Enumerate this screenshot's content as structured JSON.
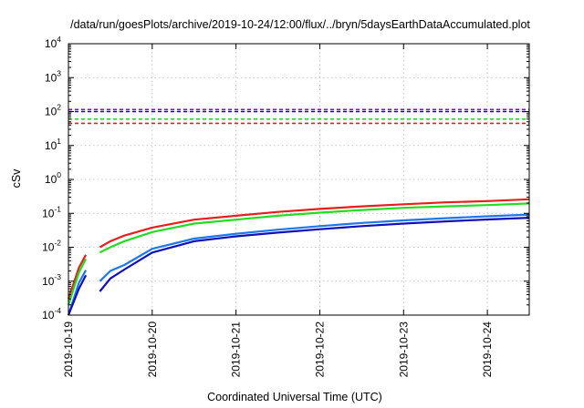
{
  "chart_data": {
    "type": "line",
    "title": "/data/run/goesPlots/archive/2019-10-24/12:00/flux/../bryn/5daysEarthDataAccumulated.plot",
    "xlabel": "Coordinated Universal Time (UTC)",
    "ylabel": "cSv",
    "x_type": "datetime",
    "xlim": [
      "2019-10-19T00:00",
      "2019-10-24T12:00"
    ],
    "x_ticks": [
      "2019-10-19",
      "2019-10-20",
      "2019-10-21",
      "2019-10-22",
      "2019-10-23",
      "2019-10-24"
    ],
    "y_scale": "log",
    "ylim": [
      0.0001,
      10000
    ],
    "y_ticks": [
      {
        "value": 0.0001,
        "base": "10",
        "exp": "-4"
      },
      {
        "value": 0.001,
        "base": "10",
        "exp": "-3"
      },
      {
        "value": 0.01,
        "base": "10",
        "exp": "-2"
      },
      {
        "value": 0.1,
        "base": "10",
        "exp": "-1"
      },
      {
        "value": 1,
        "base": "10",
        "exp": "0"
      },
      {
        "value": 10,
        "base": "10",
        "exp": "1"
      },
      {
        "value": 100,
        "base": "10",
        "exp": "2"
      },
      {
        "value": 1000,
        "base": "10",
        "exp": "3"
      },
      {
        "value": 10000,
        "base": "10",
        "exp": "4"
      }
    ],
    "grid": true,
    "series": [
      {
        "color": "#e81e1e",
        "segments": [
          [
            [
              "2019-10-19T00:00",
              0.0003
            ],
            [
              "2019-10-19T03:00",
              0.0025
            ],
            [
              "2019-10-19T05:00",
              0.006
            ]
          ],
          [
            [
              "2019-10-19T09:00",
              0.01
            ],
            [
              "2019-10-19T12:00",
              0.015
            ],
            [
              "2019-10-19T16:00",
              0.022
            ],
            [
              "2019-10-20T00:00",
              0.038
            ],
            [
              "2019-10-20T12:00",
              0.065
            ],
            [
              "2019-10-21T00:00",
              0.085
            ],
            [
              "2019-10-21T12:00",
              0.11
            ],
            [
              "2019-10-22T00:00",
              0.135
            ],
            [
              "2019-10-22T12:00",
              0.16
            ],
            [
              "2019-10-23T00:00",
              0.185
            ],
            [
              "2019-10-23T12:00",
              0.21
            ],
            [
              "2019-10-24T00:00",
              0.23
            ],
            [
              "2019-10-24T12:00",
              0.26
            ]
          ]
        ]
      },
      {
        "color": "#22dd22",
        "segments": [
          [
            [
              "2019-10-19T00:00",
              0.0002
            ],
            [
              "2019-10-19T03:00",
              0.0018
            ],
            [
              "2019-10-19T05:00",
              0.0045
            ]
          ],
          [
            [
              "2019-10-19T09:00",
              0.007
            ],
            [
              "2019-10-19T12:00",
              0.01
            ],
            [
              "2019-10-19T16:00",
              0.015
            ],
            [
              "2019-10-20T00:00",
              0.028
            ],
            [
              "2019-10-20T12:00",
              0.05
            ],
            [
              "2019-10-21T00:00",
              0.065
            ],
            [
              "2019-10-21T12:00",
              0.085
            ],
            [
              "2019-10-22T00:00",
              0.105
            ],
            [
              "2019-10-22T12:00",
              0.125
            ],
            [
              "2019-10-23T00:00",
              0.145
            ],
            [
              "2019-10-23T12:00",
              0.16
            ],
            [
              "2019-10-24T00:00",
              0.175
            ],
            [
              "2019-10-24T12:00",
              0.195
            ]
          ]
        ]
      },
      {
        "color": "#1e78e6",
        "segments": [
          [
            [
              "2019-10-19T00:00",
              0.0001
            ],
            [
              "2019-10-19T03:00",
              0.0009
            ],
            [
              "2019-10-19T05:00",
              0.0021
            ]
          ],
          [
            [
              "2019-10-19T09:00",
              0.001
            ],
            [
              "2019-10-19T12:00",
              0.002
            ],
            [
              "2019-10-19T16:00",
              0.003
            ],
            [
              "2019-10-20T00:00",
              0.009
            ],
            [
              "2019-10-20T12:00",
              0.018
            ],
            [
              "2019-10-21T00:00",
              0.025
            ],
            [
              "2019-10-21T12:00",
              0.033
            ],
            [
              "2019-10-22T00:00",
              0.042
            ],
            [
              "2019-10-22T12:00",
              0.052
            ],
            [
              "2019-10-23T00:00",
              0.062
            ],
            [
              "2019-10-23T12:00",
              0.072
            ],
            [
              "2019-10-24T00:00",
              0.082
            ],
            [
              "2019-10-24T12:00",
              0.092
            ]
          ]
        ]
      },
      {
        "color": "#1010b8",
        "segments": [
          [
            [
              "2019-10-19T00:00",
              0.0001
            ],
            [
              "2019-10-19T03:00",
              0.0006
            ],
            [
              "2019-10-19T05:00",
              0.0015
            ]
          ],
          [
            [
              "2019-10-19T09:00",
              0.0005
            ],
            [
              "2019-10-19T12:00",
              0.0012
            ],
            [
              "2019-10-19T16:00",
              0.0022
            ],
            [
              "2019-10-20T00:00",
              0.007
            ],
            [
              "2019-10-20T12:00",
              0.015
            ],
            [
              "2019-10-21T00:00",
              0.021
            ],
            [
              "2019-10-21T12:00",
              0.027
            ],
            [
              "2019-10-22T00:00",
              0.034
            ],
            [
              "2019-10-22T12:00",
              0.042
            ],
            [
              "2019-10-23T00:00",
              0.05
            ],
            [
              "2019-10-23T12:00",
              0.058
            ],
            [
              "2019-10-24T00:00",
              0.066
            ],
            [
              "2019-10-24T12:00",
              0.074
            ]
          ]
        ]
      }
    ],
    "reference_lines": [
      {
        "value": 115,
        "color": "#9400d3",
        "style": "dashed"
      },
      {
        "value": 100,
        "color": "#0000cc",
        "style": "dashed"
      },
      {
        "value": 60,
        "color": "#22dd22",
        "style": "dashed"
      },
      {
        "value": 45,
        "color": "#e81e1e",
        "style": "dashed"
      }
    ]
  }
}
